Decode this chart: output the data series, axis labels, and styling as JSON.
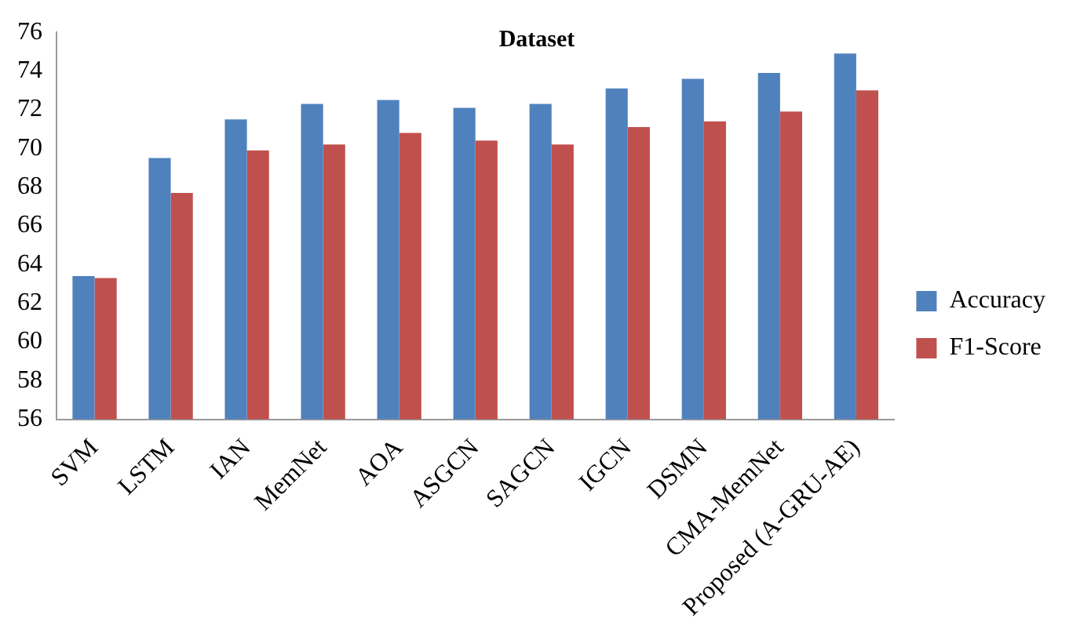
{
  "chart_data": {
    "type": "bar",
    "title": "Dataset",
    "categories": [
      "SVM",
      "LSTM",
      "IAN",
      "MemNet",
      "AOA",
      "ASGCN",
      "SAGCN",
      "IGCN",
      "DSMN",
      "CMA-MemNet",
      "Proposed (A-GRU-AE)"
    ],
    "series": [
      {
        "name": "Accuracy",
        "color": "#4f81bd",
        "values": [
          63.4,
          69.5,
          71.5,
          72.3,
          72.5,
          72.1,
          72.3,
          73.1,
          73.6,
          73.9,
          74.9
        ]
      },
      {
        "name": "F1-Score",
        "color": "#c0504d",
        "values": [
          63.3,
          67.7,
          69.9,
          70.2,
          70.8,
          70.4,
          70.2,
          71.1,
          71.4,
          71.9,
          73.0
        ]
      }
    ],
    "ylim": [
      56,
      76
    ],
    "yticks": [
      56,
      58,
      60,
      62,
      64,
      66,
      68,
      70,
      72,
      74,
      76
    ],
    "grid": false,
    "legend": "right"
  }
}
